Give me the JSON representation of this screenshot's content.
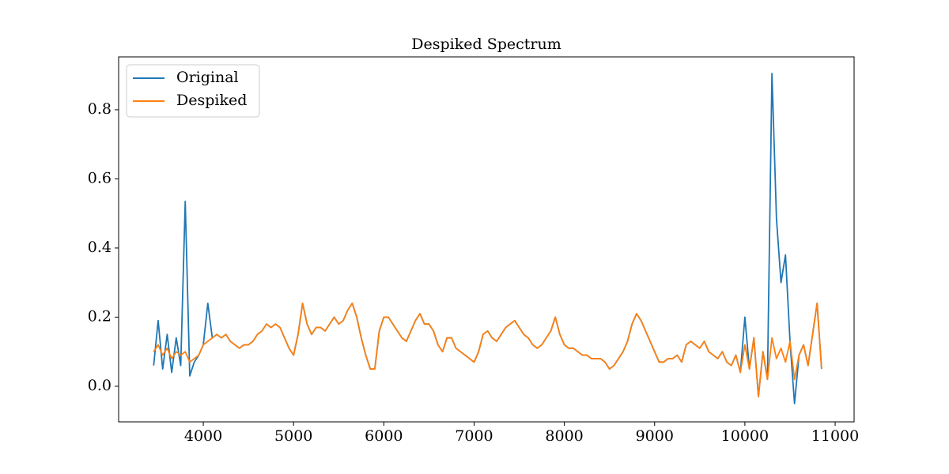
{
  "chart_data": {
    "type": "line",
    "title": "Despiked Spectrum",
    "x": [
      3450,
      3500,
      3550,
      3600,
      3650,
      3700,
      3750,
      3800,
      3850,
      3900,
      3950,
      4000,
      4050,
      4100,
      4150,
      4200,
      4250,
      4300,
      4350,
      4400,
      4450,
      4500,
      4550,
      4600,
      4650,
      4700,
      4750,
      4800,
      4850,
      4900,
      4950,
      5000,
      5050,
      5100,
      5150,
      5200,
      5250,
      5300,
      5350,
      5400,
      5450,
      5500,
      5550,
      5600,
      5650,
      5700,
      5750,
      5800,
      5850,
      5900,
      5950,
      6000,
      6050,
      6100,
      6150,
      6200,
      6250,
      6300,
      6350,
      6400,
      6450,
      6500,
      6550,
      6600,
      6650,
      6700,
      6750,
      6800,
      6850,
      6900,
      6950,
      7000,
      7050,
      7100,
      7150,
      7200,
      7250,
      7300,
      7350,
      7400,
      7450,
      7500,
      7550,
      7600,
      7650,
      7700,
      7750,
      7800,
      7850,
      7900,
      7950,
      8000,
      8050,
      8100,
      8150,
      8200,
      8250,
      8300,
      8350,
      8400,
      8450,
      8500,
      8550,
      8600,
      8650,
      8700,
      8750,
      8800,
      8850,
      8900,
      8950,
      9000,
      9050,
      9100,
      9150,
      9200,
      9250,
      9300,
      9350,
      9400,
      9450,
      9500,
      9550,
      9600,
      9650,
      9700,
      9750,
      9800,
      9850,
      9900,
      9950,
      10000,
      10050,
      10100,
      10150,
      10200,
      10250,
      10300,
      10350,
      10400,
      10450,
      10500,
      10550,
      10600,
      10650,
      10700,
      10750,
      10800,
      10850
    ],
    "series": [
      {
        "name": "Original",
        "color": "#1f77b4",
        "values": [
          0.06,
          0.19,
          0.05,
          0.15,
          0.04,
          0.14,
          0.06,
          0.535,
          0.03,
          0.07,
          0.09,
          0.12,
          0.24,
          0.14,
          0.15,
          0.14,
          0.15,
          0.13,
          0.12,
          0.11,
          0.12,
          0.12,
          0.13,
          0.15,
          0.16,
          0.18,
          0.17,
          0.18,
          0.17,
          0.14,
          0.11,
          0.09,
          0.15,
          0.24,
          0.18,
          0.15,
          0.17,
          0.17,
          0.16,
          0.18,
          0.2,
          0.18,
          0.19,
          0.22,
          0.24,
          0.2,
          0.14,
          0.09,
          0.05,
          0.05,
          0.16,
          0.2,
          0.2,
          0.18,
          0.16,
          0.14,
          0.13,
          0.16,
          0.19,
          0.21,
          0.18,
          0.18,
          0.16,
          0.12,
          0.1,
          0.14,
          0.14,
          0.11,
          0.1,
          0.09,
          0.08,
          0.07,
          0.1,
          0.15,
          0.16,
          0.14,
          0.13,
          0.15,
          0.17,
          0.18,
          0.19,
          0.17,
          0.15,
          0.14,
          0.12,
          0.11,
          0.12,
          0.14,
          0.16,
          0.2,
          0.15,
          0.12,
          0.11,
          0.11,
          0.1,
          0.09,
          0.09,
          0.08,
          0.08,
          0.08,
          0.07,
          0.05,
          0.06,
          0.08,
          0.1,
          0.13,
          0.18,
          0.21,
          0.19,
          0.16,
          0.13,
          0.1,
          0.07,
          0.07,
          0.08,
          0.08,
          0.09,
          0.07,
          0.12,
          0.13,
          0.12,
          0.11,
          0.13,
          0.1,
          0.09,
          0.08,
          0.1,
          0.07,
          0.06,
          0.09,
          0.04,
          0.2,
          0.05,
          0.14,
          -0.03,
          0.1,
          0.02,
          0.905,
          0.485,
          0.3,
          0.38,
          0.13,
          -0.05,
          0.09,
          0.12,
          0.06,
          0.15,
          0.24,
          0.05
        ]
      },
      {
        "name": "Despiked",
        "color": "#ff7f0e",
        "values": [
          0.1,
          0.12,
          0.09,
          0.11,
          0.08,
          0.1,
          0.09,
          0.1,
          0.07,
          0.08,
          0.09,
          0.12,
          0.13,
          0.14,
          0.15,
          0.14,
          0.15,
          0.13,
          0.12,
          0.11,
          0.12,
          0.12,
          0.13,
          0.15,
          0.16,
          0.18,
          0.17,
          0.18,
          0.17,
          0.14,
          0.11,
          0.09,
          0.15,
          0.24,
          0.18,
          0.15,
          0.17,
          0.17,
          0.16,
          0.18,
          0.2,
          0.18,
          0.19,
          0.22,
          0.24,
          0.2,
          0.14,
          0.09,
          0.05,
          0.05,
          0.16,
          0.2,
          0.2,
          0.18,
          0.16,
          0.14,
          0.13,
          0.16,
          0.19,
          0.21,
          0.18,
          0.18,
          0.16,
          0.12,
          0.1,
          0.14,
          0.14,
          0.11,
          0.1,
          0.09,
          0.08,
          0.07,
          0.1,
          0.15,
          0.16,
          0.14,
          0.13,
          0.15,
          0.17,
          0.18,
          0.19,
          0.17,
          0.15,
          0.14,
          0.12,
          0.11,
          0.12,
          0.14,
          0.16,
          0.2,
          0.15,
          0.12,
          0.11,
          0.11,
          0.1,
          0.09,
          0.09,
          0.08,
          0.08,
          0.08,
          0.07,
          0.05,
          0.06,
          0.08,
          0.1,
          0.13,
          0.18,
          0.21,
          0.19,
          0.16,
          0.13,
          0.1,
          0.07,
          0.07,
          0.08,
          0.08,
          0.09,
          0.07,
          0.12,
          0.13,
          0.12,
          0.11,
          0.13,
          0.1,
          0.09,
          0.08,
          0.1,
          0.07,
          0.06,
          0.09,
          0.04,
          0.12,
          0.05,
          0.14,
          -0.03,
          0.1,
          0.02,
          0.14,
          0.08,
          0.11,
          0.07,
          0.13,
          0.02,
          0.09,
          0.12,
          0.06,
          0.15,
          0.24,
          0.05
        ]
      }
    ],
    "xlim": [
      3062,
      11210
    ],
    "xticks": [
      4000,
      5000,
      6000,
      7000,
      8000,
      9000,
      10000,
      11000
    ],
    "ylim": [
      -0.103,
      0.953
    ],
    "yticks": [
      {
        "value": 0,
        "label": "0.0"
      },
      0.2,
      0.4,
      0.6,
      0.8
    ],
    "legend": "upper left"
  }
}
